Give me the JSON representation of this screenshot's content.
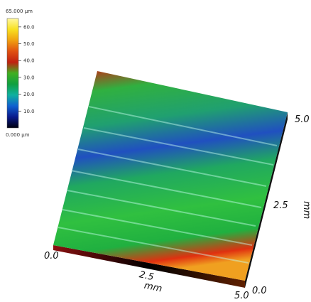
{
  "chart_data": {
    "type": "surface3d",
    "colorbar": {
      "max_label": "65.000 µm",
      "min_label": "0.000 µm",
      "zlim": [
        0,
        65
      ],
      "ticks": [
        {
          "value": 10,
          "label": "10.0"
        },
        {
          "value": 20,
          "label": "20.0"
        },
        {
          "value": 30,
          "label": "30.0"
        },
        {
          "value": 40,
          "label": "40.0"
        },
        {
          "value": 50,
          "label": "50.0"
        },
        {
          "value": 60,
          "label": "60.0"
        }
      ],
      "colormap": [
        "#000010",
        "#0a1a8c",
        "#1060d0",
        "#10b0a0",
        "#10a040",
        "#40b020",
        "#c02010",
        "#e05010",
        "#f0a010",
        "#f8e020",
        "#fff8a0"
      ]
    },
    "x_axis": {
      "ticks": [
        {
          "value": 0,
          "label": "0.0"
        },
        {
          "value": 2.5,
          "label": "2.5"
        },
        {
          "value": 5,
          "label": "5.0"
        }
      ],
      "label": "mm"
    },
    "y_axis": {
      "ticks": [
        {
          "value": 0,
          "label": "0.0"
        },
        {
          "value": 2.5,
          "label": "2.5"
        },
        {
          "value": 5,
          "label": "5.0"
        }
      ],
      "label": "mm"
    }
  }
}
